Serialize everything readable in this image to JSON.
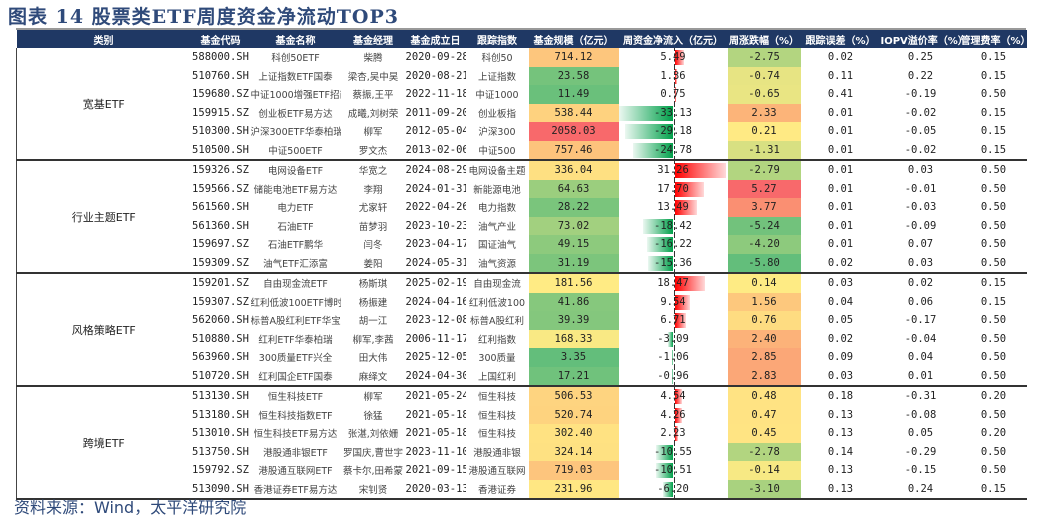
{
  "title": "图表 14 股票类ETF周度资金净流动TOP3",
  "headers": [
    "类别",
    "基金代码",
    "基金名称",
    "基金经理",
    "基金成立日",
    "跟踪指数",
    "基金规模（亿元）",
    "周资金净流入（亿元）",
    "周涨跌幅（%）",
    "跟踪误差（%）",
    "IOPV溢价率（%）",
    "管理费率（%）"
  ],
  "color_scale": {
    "low": "#63be7b",
    "mid": "#ffeb84",
    "high": "#f8696b"
  },
  "bar_colors": {
    "inflow": "#ff0000",
    "outflow": "#00a04a"
  },
  "groups": [
    {
      "category": "宽基ETF",
      "rows": [
        [
          "588000.SH",
          "科创50ETF",
          "柴腾",
          "2020-09-28",
          "科创50",
          "714.12",
          "5.49",
          "-2.75",
          "0.02",
          "0.25",
          "0.15"
        ],
        [
          "510760.SH",
          "上证指数ETF国泰",
          "梁杏,吴中昊",
          "2020-08-21",
          "上证指数",
          "23.58",
          "1.36",
          "-0.74",
          "0.11",
          "0.22",
          "0.15"
        ],
        [
          "159680.SZ",
          "中证1000增强ETF招商",
          "蔡振,王平",
          "2022-11-18",
          "中证1000",
          "11.49",
          "0.75",
          "-0.65",
          "0.41",
          "-0.19",
          "0.50"
        ],
        [
          "159915.SZ",
          "创业板ETF易方达",
          "成曦,刘树荣",
          "2011-09-20",
          "创业板指",
          "538.44",
          "-33.13",
          "2.33",
          "0.01",
          "-0.02",
          "0.15"
        ],
        [
          "510300.SH",
          "沪深300ETF华泰柏瑞",
          "柳军",
          "2012-05-04",
          "沪深300",
          "2058.03",
          "-29.18",
          "0.21",
          "0.01",
          "-0.05",
          "0.15"
        ],
        [
          "510500.SH",
          "中证500ETF",
          "罗文杰",
          "2013-02-06",
          "中证500",
          "757.46",
          "-24.78",
          "-1.31",
          "0.01",
          "-0.02",
          "0.15"
        ]
      ]
    },
    {
      "category": "行业主题ETF",
      "rows": [
        [
          "159326.SZ",
          "电网设备ETF",
          "华宽之",
          "2024-08-29",
          "电网设备主题",
          "336.04",
          "31.26",
          "-2.79",
          "0.01",
          "0.03",
          "0.50"
        ],
        [
          "159566.SZ",
          "储能电池ETF易方达",
          "李翔",
          "2024-01-31",
          "新能源电池",
          "64.63",
          "17.70",
          "5.27",
          "0.01",
          "-0.01",
          "0.50"
        ],
        [
          "561560.SH",
          "电力ETF",
          "尤家轩",
          "2022-04-26",
          "电力指数",
          "28.22",
          "13.49",
          "3.77",
          "0.01",
          "-0.03",
          "0.50"
        ],
        [
          "561360.SH",
          "石油ETF",
          "苗梦羽",
          "2023-10-23",
          "油气产业",
          "73.02",
          "-18.42",
          "-5.24",
          "0.01",
          "-0.09",
          "0.50"
        ],
        [
          "159697.SZ",
          "石油ETF鹏华",
          "闫冬",
          "2023-04-17",
          "国证油气",
          "49.15",
          "-16.22",
          "-4.20",
          "0.01",
          "0.07",
          "0.50"
        ],
        [
          "159309.SZ",
          "油气ETF汇添富",
          "姜阳",
          "2024-05-31",
          "油气资源",
          "31.19",
          "-15.36",
          "-5.80",
          "0.02",
          "0.03",
          "0.50"
        ]
      ]
    },
    {
      "category": "风格策略ETF",
      "rows": [
        [
          "159201.SZ",
          "自由现金流ETF",
          "杨斯琪",
          "2025-02-19",
          "自由现金流",
          "181.56",
          "18.47",
          "0.14",
          "0.03",
          "0.02",
          "0.15"
        ],
        [
          "159307.SZ",
          "红利低波100ETF博时",
          "杨振建",
          "2024-04-16",
          "红利低波100",
          "41.86",
          "9.54",
          "1.56",
          "0.04",
          "0.06",
          "0.15"
        ],
        [
          "562060.SH",
          "标普A股红利ETF华宝",
          "胡一江",
          "2023-12-08",
          "标普A股红利",
          "39.39",
          "6.71",
          "0.76",
          "0.05",
          "-0.17",
          "0.50"
        ],
        [
          "510880.SH",
          "红利ETF华泰柏瑞",
          "柳军,李茜",
          "2006-11-17",
          "红利指数",
          "168.33",
          "-3.09",
          "2.40",
          "0.02",
          "-0.04",
          "0.50"
        ],
        [
          "563960.SH",
          "300质量ETF兴全",
          "田大伟",
          "2025-12-05",
          "300质量",
          "3.35",
          "-1.06",
          "2.85",
          "0.09",
          "0.04",
          "0.50"
        ],
        [
          "510720.SH",
          "红利国企ETF国泰",
          "麻绎文",
          "2024-04-30",
          "上国红利",
          "17.21",
          "-0.96",
          "2.83",
          "0.03",
          "0.01",
          "0.50"
        ]
      ]
    },
    {
      "category": "跨境ETF",
      "rows": [
        [
          "513130.SH",
          "恒生科技ETF",
          "柳军",
          "2021-05-24",
          "恒生科技",
          "506.53",
          "4.54",
          "0.48",
          "0.18",
          "-0.31",
          "0.20"
        ],
        [
          "513180.SH",
          "恒生科技指数ETF",
          "徐猛",
          "2021-05-18",
          "恒生科技",
          "520.74",
          "4.26",
          "0.47",
          "0.13",
          "-0.08",
          "0.50"
        ],
        [
          "513010.SH",
          "恒生科技ETF易方达",
          "张湛,刘依姗",
          "2021-05-18",
          "恒生科技",
          "302.40",
          "2.23",
          "0.45",
          "0.13",
          "0.05",
          "0.20"
        ],
        [
          "513750.SH",
          "港股通非银ETF",
          "罗国庆,曹世宇",
          "2023-11-10",
          "港股通非银",
          "324.14",
          "-10.55",
          "-2.78",
          "0.14",
          "-0.29",
          "0.50"
        ],
        [
          "159792.SZ",
          "港股通互联网ETF",
          "蔡卡尔,田希蒙",
          "2021-09-15",
          "港股通互联网",
          "719.03",
          "-10.51",
          "-0.14",
          "0.13",
          "-0.15",
          "0.50"
        ],
        [
          "513090.SH",
          "香港证券ETF易方达",
          "宋钊贤",
          "2020-03-13",
          "香港证券",
          "231.96",
          "-6.20",
          "-3.10",
          "0.13",
          "0.24",
          "0.15"
        ]
      ]
    }
  ],
  "source": "资料来源：Wind，太平洋研究院"
}
